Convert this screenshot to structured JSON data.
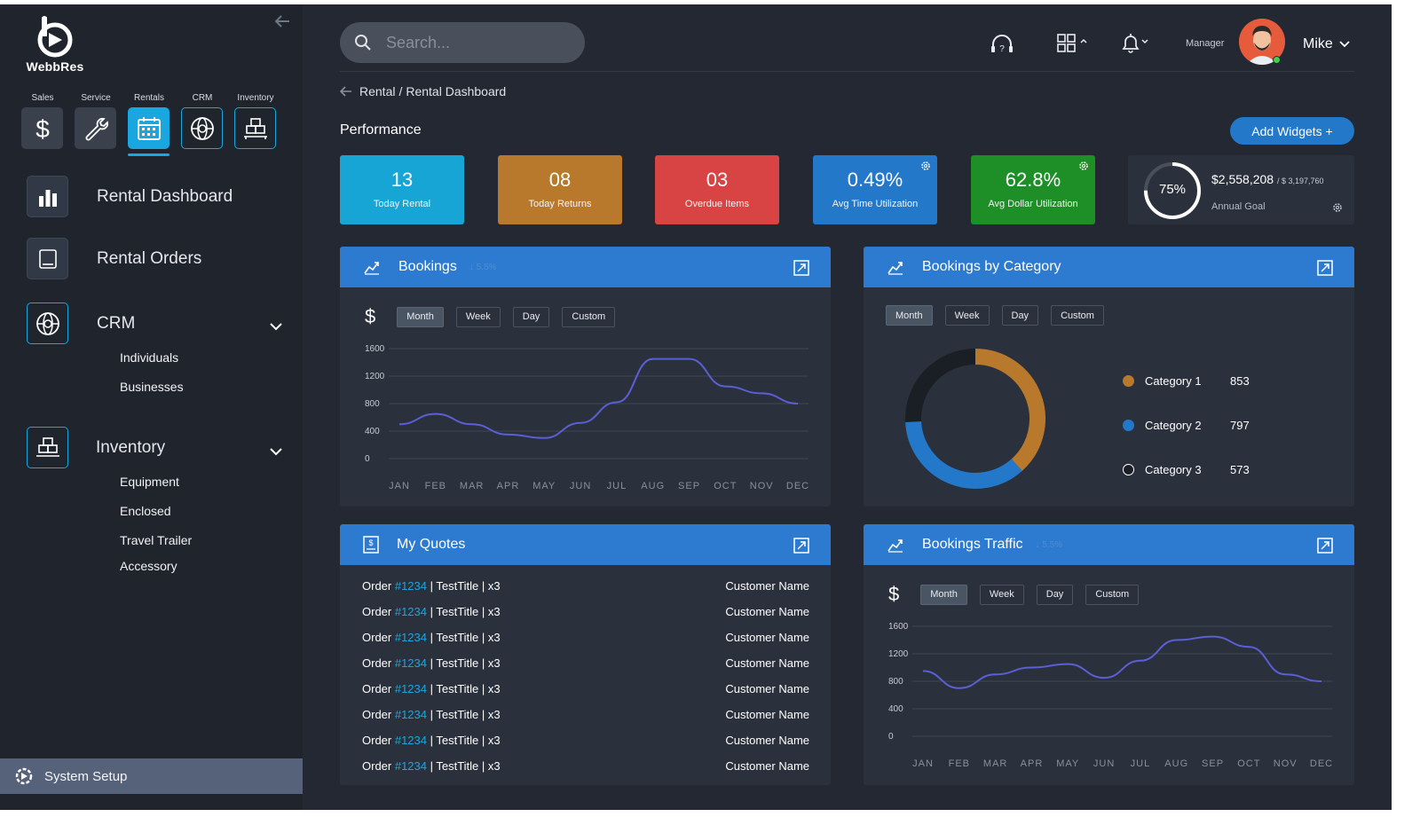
{
  "app": {
    "name": "WebbRes"
  },
  "modules": [
    {
      "label": "Sales",
      "icon": "dollar-icon"
    },
    {
      "label": "Service",
      "icon": "wrench-icon"
    },
    {
      "label": "Rentals",
      "icon": "calendar-icon"
    },
    {
      "label": "CRM",
      "icon": "globe-icon"
    },
    {
      "label": "Inventory",
      "icon": "boxes-icon"
    }
  ],
  "nav": {
    "rental_dashboard": "Rental Dashboard",
    "rental_orders": "Rental Orders",
    "crm": {
      "label": "CRM",
      "items": [
        "Individuals",
        "Businesses"
      ]
    },
    "inventory": {
      "label": "Inventory",
      "items": [
        "Equipment",
        "Enclosed",
        "Travel Trailer",
        "Accessory"
      ]
    },
    "system_setup": "System Setup"
  },
  "topbar": {
    "search_placeholder": "Search...",
    "role": "Manager",
    "user": "Mike"
  },
  "breadcrumb": {
    "parent": "Rental",
    "separator": "/",
    "current": "Rental Dashboard"
  },
  "performance": {
    "title": "Performance",
    "add_widgets": "Add Widgets +",
    "kpis": [
      {
        "value": "13",
        "label": "Today Rental",
        "color": "#17a5d6"
      },
      {
        "value": "08",
        "label": "Today Returns",
        "color": "#b8792d"
      },
      {
        "value": "03",
        "label": "Overdue Items",
        "color": "#d84444"
      },
      {
        "value": "0.49%",
        "label": "Avg Time Utilization",
        "color": "#2478c9"
      },
      {
        "value": "62.8%",
        "label": "Avg Dollar Utilization",
        "color": "#1e8e27"
      }
    ],
    "goal": {
      "percent": "75%",
      "percent_value": 0.75,
      "amount": "$2,558,208",
      "target": "/ $ 3,197,760",
      "label": "Annual Goal"
    }
  },
  "periods": [
    "Month",
    "Week",
    "Day",
    "Custom"
  ],
  "bookings": {
    "title": "Bookings",
    "delta": "↓ 5.5%",
    "chart_data": {
      "type": "line",
      "categories": [
        "JAN",
        "FEB",
        "MAR",
        "APR",
        "MAY",
        "JUN",
        "JUL",
        "AUG",
        "SEP",
        "OCT",
        "NOV",
        "DEC"
      ],
      "series": [
        {
          "values": [
            500,
            650,
            500,
            350,
            300,
            520,
            820,
            1450,
            1450,
            1050,
            950,
            800
          ]
        }
      ],
      "yticks": [
        0,
        400,
        800,
        1200,
        1600
      ],
      "ylim": [
        0,
        1600
      ]
    }
  },
  "bookings_by_category": {
    "title": "Bookings by Category",
    "chart_data": {
      "type": "pie",
      "categories": [
        "Category 1",
        "Category 2",
        "Category 3"
      ],
      "values": [
        853,
        797,
        573
      ],
      "colors": [
        "#b8792d",
        "#2478c9",
        "#1a1e25"
      ]
    }
  },
  "my_quotes": {
    "title": "My Quotes",
    "rows": [
      {
        "order_prefix": "Order",
        "order_no": "#1234",
        "detail": "| TestTitle | x3",
        "customer": "Customer Name"
      },
      {
        "order_prefix": "Order",
        "order_no": "#1234",
        "detail": "| TestTitle | x3",
        "customer": "Customer Name"
      },
      {
        "order_prefix": "Order",
        "order_no": "#1234",
        "detail": "| TestTitle | x3",
        "customer": "Customer Name"
      },
      {
        "order_prefix": "Order",
        "order_no": "#1234",
        "detail": "| TestTitle | x3",
        "customer": "Customer Name"
      },
      {
        "order_prefix": "Order",
        "order_no": "#1234",
        "detail": "| TestTitle | x3",
        "customer": "Customer Name"
      },
      {
        "order_prefix": "Order",
        "order_no": "#1234",
        "detail": "| TestTitle | x3",
        "customer": "Customer Name"
      },
      {
        "order_prefix": "Order",
        "order_no": "#1234",
        "detail": "| TestTitle | x3",
        "customer": "Customer Name"
      },
      {
        "order_prefix": "Order",
        "order_no": "#1234",
        "detail": "| TestTitle | x3",
        "customer": "Customer Name"
      }
    ]
  },
  "bookings_traffic": {
    "title": "Bookings Traffic",
    "delta": "↓ 5.5%",
    "chart_data": {
      "type": "line",
      "categories": [
        "JAN",
        "FEB",
        "MAR",
        "APR",
        "MAY",
        "JUN",
        "JUL",
        "AUG",
        "SEP",
        "OCT",
        "NOV",
        "DEC"
      ],
      "series": [
        {
          "values": [
            950,
            700,
            900,
            1000,
            1050,
            850,
            1100,
            1400,
            1450,
            1300,
            900,
            800
          ]
        }
      ],
      "yticks": [
        0,
        400,
        800,
        1200,
        1600
      ],
      "ylim": [
        0,
        1600
      ]
    }
  },
  "colors": {
    "accent": "#1aa6df",
    "panel_header": "#2d7bd0",
    "line": "#5b5fd6"
  }
}
